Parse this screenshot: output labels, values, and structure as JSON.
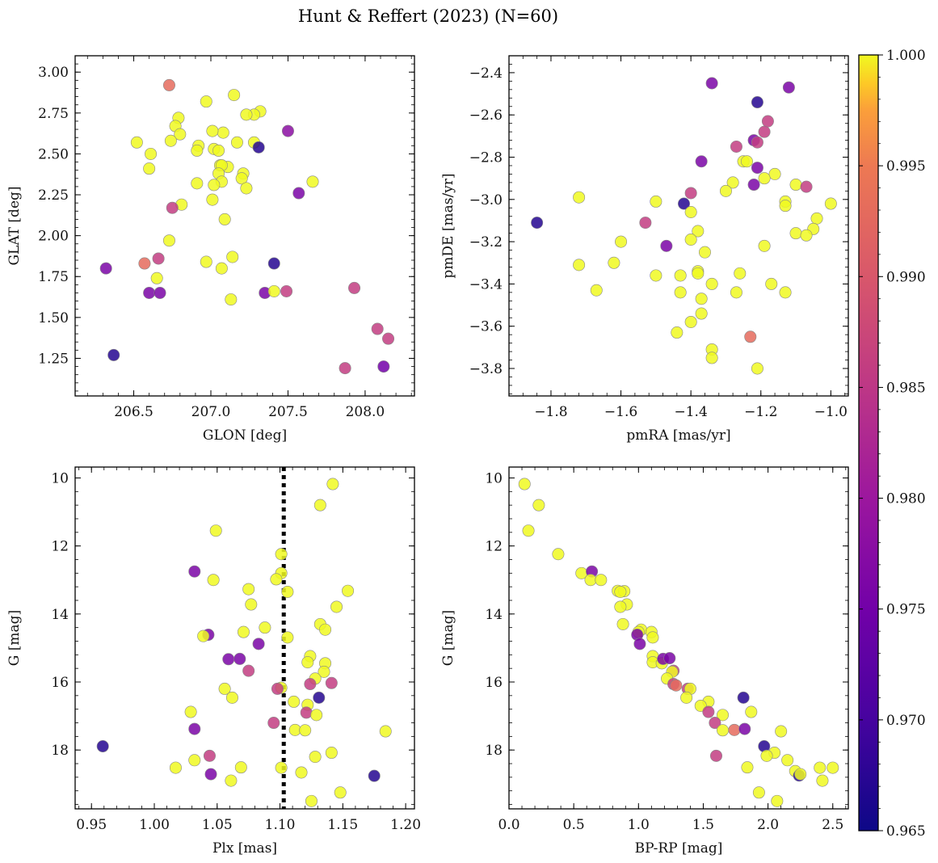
{
  "figure_title": "Hunt & Reffert (2023) (N=60)",
  "colorbar": {
    "range": [
      0.965,
      1.0
    ],
    "ticks": [
      "0.965",
      "0.970",
      "0.975",
      "0.980",
      "0.985",
      "0.990",
      "0.995",
      "1.000"
    ],
    "colormap": "plasma"
  },
  "chart_data": [
    {
      "id": "glon-glat",
      "type": "scatter",
      "xlabel": "GLON [deg]",
      "ylabel": "GLAT [deg]",
      "xlim": [
        206.12,
        208.32
      ],
      "ylim": [
        1.02,
        3.1
      ],
      "x_ticks": [
        "206.5",
        "207.0",
        "207.5",
        "208.0"
      ],
      "x_tick_values": [
        206.5,
        207.0,
        207.5,
        208.0
      ],
      "y_ticks": [
        "1.25",
        "1.50",
        "1.75",
        "2.00",
        "2.25",
        "2.50",
        "2.75",
        "3.00"
      ],
      "y_tick_values": [
        1.25,
        1.5,
        1.75,
        2.0,
        2.25,
        2.5,
        2.75,
        3.0
      ],
      "y_inverted": false,
      "points": [
        [
          206.73,
          2.92,
          0.993
        ],
        [
          207.15,
          2.86,
          1.0
        ],
        [
          206.97,
          2.82,
          1.0
        ],
        [
          206.79,
          2.72,
          1.0
        ],
        [
          207.32,
          2.76,
          1.0
        ],
        [
          207.28,
          2.74,
          1.0
        ],
        [
          207.23,
          2.74,
          1.0
        ],
        [
          207.08,
          2.63,
          1.0
        ],
        [
          206.77,
          2.67,
          1.0
        ],
        [
          207.01,
          2.64,
          1.0
        ],
        [
          207.5,
          2.64,
          0.978
        ],
        [
          206.8,
          2.62,
          1.0
        ],
        [
          206.74,
          2.58,
          1.0
        ],
        [
          207.17,
          2.57,
          1.0
        ],
        [
          207.28,
          2.57,
          1.0
        ],
        [
          206.52,
          2.57,
          1.0
        ],
        [
          206.92,
          2.55,
          1.0
        ],
        [
          207.02,
          2.53,
          1.0
        ],
        [
          207.31,
          2.54,
          0.967
        ],
        [
          207.05,
          2.52,
          1.0
        ],
        [
          206.91,
          2.52,
          1.0
        ],
        [
          206.61,
          2.5,
          1.0
        ],
        [
          207.11,
          2.42,
          1.0
        ],
        [
          207.06,
          2.43,
          1.0
        ],
        [
          207.07,
          2.43,
          1.0
        ],
        [
          206.6,
          2.41,
          1.0
        ],
        [
          207.05,
          2.38,
          1.0
        ],
        [
          207.21,
          2.38,
          1.0
        ],
        [
          207.2,
          2.35,
          1.0
        ],
        [
          207.07,
          2.33,
          1.0
        ],
        [
          207.66,
          2.33,
          1.0
        ],
        [
          206.91,
          2.32,
          1.0
        ],
        [
          207.02,
          2.31,
          1.0
        ],
        [
          207.23,
          2.29,
          1.0
        ],
        [
          207.57,
          2.26,
          0.976
        ],
        [
          207.01,
          2.22,
          1.0
        ],
        [
          206.81,
          2.19,
          1.0
        ],
        [
          206.75,
          2.17,
          0.986
        ],
        [
          207.09,
          2.1,
          1.0
        ],
        [
          206.73,
          1.97,
          1.0
        ],
        [
          207.14,
          1.87,
          1.0
        ],
        [
          206.66,
          1.86,
          0.986
        ],
        [
          206.97,
          1.84,
          1.0
        ],
        [
          206.57,
          1.83,
          0.993
        ],
        [
          207.41,
          1.83,
          0.967
        ],
        [
          206.32,
          1.8,
          0.976
        ],
        [
          207.07,
          1.8,
          1.0
        ],
        [
          206.65,
          1.74,
          1.0
        ],
        [
          207.93,
          1.68,
          0.986
        ],
        [
          207.35,
          1.65,
          0.976
        ],
        [
          207.41,
          1.66,
          1.0
        ],
        [
          207.49,
          1.66,
          0.986
        ],
        [
          206.6,
          1.65,
          0.976
        ],
        [
          206.67,
          1.65,
          0.976
        ],
        [
          207.13,
          1.61,
          1.0
        ],
        [
          208.08,
          1.43,
          0.986
        ],
        [
          208.15,
          1.37,
          0.986
        ],
        [
          206.37,
          1.27,
          0.967
        ],
        [
          207.87,
          1.19,
          0.986
        ],
        [
          208.12,
          1.2,
          0.975
        ]
      ]
    },
    {
      "id": "pmra-pmde",
      "type": "scatter",
      "xlabel": "pmRA [mas/yr]",
      "ylabel": "pmDE [mas/yr]",
      "xlim": [
        -1.92,
        -0.95
      ],
      "ylim": [
        -3.93,
        -2.32
      ],
      "x_ticks": [
        "−1.8",
        "−1.6",
        "−1.4",
        "−1.2",
        "−1.0"
      ],
      "x_tick_values": [
        -1.8,
        -1.6,
        -1.4,
        -1.2,
        -1.0
      ],
      "y_ticks": [
        "−2.4",
        "−2.6",
        "−2.8",
        "−3.0",
        "−3.2",
        "−3.4",
        "−3.6",
        "−3.8"
      ],
      "y_tick_values": [
        -2.4,
        -2.6,
        -2.8,
        -3.0,
        -3.2,
        -3.4,
        -3.6,
        -3.8
      ],
      "y_inverted": false,
      "points": [
        [
          -1.34,
          -2.45,
          0.976
        ],
        [
          -1.12,
          -2.47,
          0.976
        ],
        [
          -1.21,
          -2.54,
          0.967
        ],
        [
          -1.18,
          -2.63,
          0.986
        ],
        [
          -1.19,
          -2.68,
          0.986
        ],
        [
          -1.22,
          -2.72,
          0.976
        ],
        [
          -1.21,
          -2.73,
          0.986
        ],
        [
          -1.27,
          -2.75,
          0.986
        ],
        [
          -1.37,
          -2.82,
          0.976
        ],
        [
          -1.25,
          -2.82,
          1.0
        ],
        [
          -1.24,
          -2.82,
          1.0
        ],
        [
          -1.21,
          -2.85,
          0.976
        ],
        [
          -1.16,
          -2.88,
          1.0
        ],
        [
          -1.19,
          -2.9,
          1.0
        ],
        [
          -1.1,
          -2.93,
          1.0
        ],
        [
          -1.28,
          -2.92,
          1.0
        ],
        [
          -1.22,
          -2.93,
          0.976
        ],
        [
          -1.07,
          -2.94,
          0.986
        ],
        [
          -1.3,
          -2.96,
          1.0
        ],
        [
          -1.4,
          -2.97,
          0.986
        ],
        [
          -1.72,
          -2.99,
          1.0
        ],
        [
          -1.5,
          -3.01,
          1.0
        ],
        [
          -1.42,
          -3.02,
          0.967
        ],
        [
          -1.0,
          -3.02,
          1.0
        ],
        [
          -1.13,
          -3.01,
          1.0
        ],
        [
          -1.13,
          -3.03,
          1.0
        ],
        [
          -1.4,
          -3.06,
          1.0
        ],
        [
          -1.84,
          -3.11,
          0.967
        ],
        [
          -1.53,
          -3.11,
          0.986
        ],
        [
          -1.04,
          -3.09,
          1.0
        ],
        [
          -1.05,
          -3.14,
          1.0
        ],
        [
          -1.1,
          -3.16,
          1.0
        ],
        [
          -1.07,
          -3.17,
          1.0
        ],
        [
          -1.38,
          -3.15,
          1.0
        ],
        [
          -1.4,
          -3.19,
          1.0
        ],
        [
          -1.6,
          -3.2,
          1.0
        ],
        [
          -1.47,
          -3.22,
          0.976
        ],
        [
          -1.19,
          -3.22,
          1.0
        ],
        [
          -1.36,
          -3.25,
          1.0
        ],
        [
          -1.62,
          -3.3,
          1.0
        ],
        [
          -1.72,
          -3.31,
          1.0
        ],
        [
          -1.38,
          -3.34,
          1.0
        ],
        [
          -1.26,
          -3.35,
          1.0
        ],
        [
          -1.5,
          -3.36,
          1.0
        ],
        [
          -1.43,
          -3.36,
          1.0
        ],
        [
          -1.38,
          -3.35,
          1.0
        ],
        [
          -1.34,
          -3.4,
          1.0
        ],
        [
          -1.17,
          -3.4,
          1.0
        ],
        [
          -1.67,
          -3.43,
          1.0
        ],
        [
          -1.43,
          -3.44,
          1.0
        ],
        [
          -1.27,
          -3.44,
          1.0
        ],
        [
          -1.13,
          -3.44,
          1.0
        ],
        [
          -1.37,
          -3.47,
          1.0
        ],
        [
          -1.37,
          -3.54,
          1.0
        ],
        [
          -1.4,
          -3.58,
          1.0
        ],
        [
          -1.44,
          -3.63,
          1.0
        ],
        [
          -1.23,
          -3.65,
          0.993
        ],
        [
          -1.34,
          -3.71,
          1.0
        ],
        [
          -1.34,
          -3.75,
          1.0
        ],
        [
          -1.21,
          -3.8,
          1.0
        ]
      ]
    },
    {
      "id": "plx-g",
      "type": "scatter",
      "xlabel": "Plx [mas]",
      "ylabel": "G [mag]",
      "xlim": [
        0.937,
        1.207
      ],
      "ylim": [
        19.73,
        9.68
      ],
      "x_ticks": [
        "0.95",
        "1.00",
        "1.05",
        "1.10",
        "1.15",
        "1.20"
      ],
      "x_tick_values": [
        0.95,
        1.0,
        1.05,
        1.1,
        1.15,
        1.2
      ],
      "y_ticks": [
        "10",
        "12",
        "14",
        "16",
        "18"
      ],
      "y_tick_values": [
        10,
        12,
        14,
        16,
        18
      ],
      "y_inverted": true,
      "reference_line": {
        "x": 1.103,
        "style": "dotted",
        "color": "#000000"
      },
      "points": [
        [
          1.142,
          10.18,
          1.0
        ],
        [
          1.132,
          10.8,
          1.0
        ],
        [
          1.049,
          11.55,
          1.0
        ],
        [
          1.101,
          12.24,
          1.0
        ],
        [
          1.032,
          12.75,
          0.976
        ],
        [
          1.101,
          12.8,
          1.0
        ],
        [
          1.047,
          13.0,
          1.0
        ],
        [
          1.097,
          12.98,
          1.0
        ],
        [
          1.106,
          13.35,
          1.0
        ],
        [
          1.075,
          13.27,
          1.0
        ],
        [
          1.154,
          13.32,
          1.0
        ],
        [
          1.077,
          13.72,
          1.0
        ],
        [
          1.145,
          13.79,
          1.0
        ],
        [
          1.132,
          14.3,
          1.0
        ],
        [
          1.136,
          14.46,
          1.0
        ],
        [
          1.071,
          14.53,
          1.0
        ],
        [
          1.088,
          14.4,
          1.0
        ],
        [
          1.043,
          14.61,
          0.976
        ],
        [
          1.039,
          14.65,
          1.0
        ],
        [
          1.106,
          14.69,
          1.0
        ],
        [
          1.083,
          14.88,
          0.976
        ],
        [
          1.124,
          15.24,
          1.0
        ],
        [
          1.136,
          15.45,
          1.0
        ],
        [
          1.122,
          15.42,
          1.0
        ],
        [
          1.135,
          15.7,
          1.0
        ],
        [
          1.075,
          15.67,
          0.986
        ],
        [
          1.059,
          15.33,
          0.976
        ],
        [
          1.068,
          15.32,
          0.976
        ],
        [
          1.128,
          15.9,
          1.0
        ],
        [
          1.124,
          16.06,
          0.986
        ],
        [
          1.141,
          16.03,
          0.986
        ],
        [
          1.101,
          16.17,
          1.0
        ],
        [
          1.098,
          16.2,
          0.986
        ],
        [
          1.056,
          16.2,
          1.0
        ],
        [
          1.062,
          16.46,
          1.0
        ],
        [
          1.131,
          16.46,
          0.967
        ],
        [
          1.111,
          16.58,
          1.0
        ],
        [
          1.122,
          16.67,
          1.0
        ],
        [
          1.121,
          16.9,
          0.986
        ],
        [
          1.129,
          16.97,
          1.0
        ],
        [
          1.029,
          16.88,
          1.0
        ],
        [
          1.095,
          17.2,
          0.986
        ],
        [
          1.112,
          17.41,
          1.0
        ],
        [
          1.12,
          17.42,
          1.0
        ],
        [
          1.184,
          17.45,
          1.0
        ],
        [
          1.032,
          17.38,
          0.976
        ],
        [
          0.959,
          17.89,
          0.967
        ],
        [
          1.044,
          18.17,
          0.986
        ],
        [
          1.141,
          18.08,
          1.0
        ],
        [
          1.128,
          18.2,
          1.0
        ],
        [
          1.032,
          18.3,
          1.0
        ],
        [
          1.017,
          18.52,
          1.0
        ],
        [
          1.069,
          18.51,
          1.0
        ],
        [
          1.101,
          18.52,
          1.0
        ],
        [
          1.117,
          18.66,
          1.0
        ],
        [
          1.045,
          18.71,
          0.976
        ],
        [
          1.175,
          18.76,
          0.967
        ],
        [
          1.061,
          18.9,
          1.0
        ],
        [
          1.148,
          19.25,
          1.0
        ],
        [
          1.125,
          19.5,
          1.0
        ]
      ]
    },
    {
      "id": "bprp-g",
      "type": "scatter",
      "xlabel": "BP-RP [mag]",
      "ylabel": "G [mag]",
      "xlim": [
        0.0,
        2.62
      ],
      "ylim": [
        19.73,
        9.68
      ],
      "x_ticks": [
        "0.0",
        "0.5",
        "1.0",
        "1.5",
        "2.0",
        "2.5"
      ],
      "x_tick_values": [
        0.0,
        0.5,
        1.0,
        1.5,
        2.0,
        2.5
      ],
      "y_ticks": [
        "10",
        "12",
        "14",
        "16",
        "18"
      ],
      "y_tick_values": [
        10,
        12,
        14,
        16,
        18
      ],
      "y_inverted": true,
      "points": [
        [
          0.12,
          10.18,
          1.0
        ],
        [
          0.23,
          10.8,
          1.0
        ],
        [
          0.15,
          11.55,
          1.0
        ],
        [
          0.38,
          12.24,
          1.0
        ],
        [
          0.56,
          12.8,
          1.0
        ],
        [
          0.64,
          12.75,
          0.976
        ],
        [
          0.63,
          13.0,
          1.0
        ],
        [
          0.71,
          13.0,
          1.0
        ],
        [
          0.84,
          13.32,
          1.0
        ],
        [
          0.89,
          13.33,
          1.0
        ],
        [
          0.86,
          13.35,
          1.0
        ],
        [
          0.91,
          13.72,
          1.0
        ],
        [
          0.86,
          13.79,
          1.0
        ],
        [
          0.88,
          14.3,
          1.0
        ],
        [
          1.02,
          14.46,
          1.0
        ],
        [
          1.0,
          14.53,
          1.0
        ],
        [
          1.1,
          14.53,
          1.0
        ],
        [
          0.99,
          14.61,
          0.976
        ],
        [
          1.11,
          14.69,
          1.0
        ],
        [
          1.01,
          14.88,
          0.976
        ],
        [
          1.11,
          15.24,
          1.0
        ],
        [
          1.11,
          15.42,
          1.0
        ],
        [
          1.18,
          15.45,
          1.0
        ],
        [
          1.19,
          15.32,
          0.976
        ],
        [
          1.24,
          15.3,
          0.976
        ],
        [
          1.27,
          15.67,
          0.986
        ],
        [
          1.26,
          15.7,
          1.0
        ],
        [
          1.22,
          15.9,
          1.0
        ],
        [
          1.27,
          16.06,
          0.986
        ],
        [
          1.29,
          16.1,
          0.993
        ],
        [
          1.38,
          16.2,
          0.986
        ],
        [
          1.4,
          16.2,
          1.0
        ],
        [
          1.37,
          16.46,
          1.0
        ],
        [
          1.54,
          16.58,
          1.0
        ],
        [
          1.81,
          16.46,
          0.967
        ],
        [
          1.48,
          16.7,
          1.0
        ],
        [
          1.54,
          16.88,
          0.986
        ],
        [
          1.65,
          16.97,
          1.0
        ],
        [
          1.87,
          16.88,
          1.0
        ],
        [
          1.59,
          17.2,
          0.986
        ],
        [
          1.65,
          17.42,
          1.0
        ],
        [
          1.74,
          17.41,
          0.993
        ],
        [
          1.82,
          17.38,
          0.976
        ],
        [
          2.1,
          17.45,
          1.0
        ],
        [
          1.97,
          17.89,
          0.967
        ],
        [
          2.05,
          18.08,
          1.0
        ],
        [
          1.99,
          18.17,
          1.0
        ],
        [
          1.6,
          18.17,
          0.986
        ],
        [
          2.15,
          18.3,
          1.0
        ],
        [
          1.84,
          18.51,
          1.0
        ],
        [
          2.21,
          18.62,
          1.0
        ],
        [
          2.24,
          18.75,
          0.967
        ],
        [
          2.25,
          18.71,
          1.0
        ],
        [
          2.4,
          18.52,
          1.0
        ],
        [
          2.5,
          18.52,
          1.0
        ],
        [
          2.42,
          18.9,
          1.0
        ],
        [
          1.93,
          19.25,
          1.0
        ],
        [
          2.07,
          19.5,
          1.0
        ]
      ]
    }
  ]
}
